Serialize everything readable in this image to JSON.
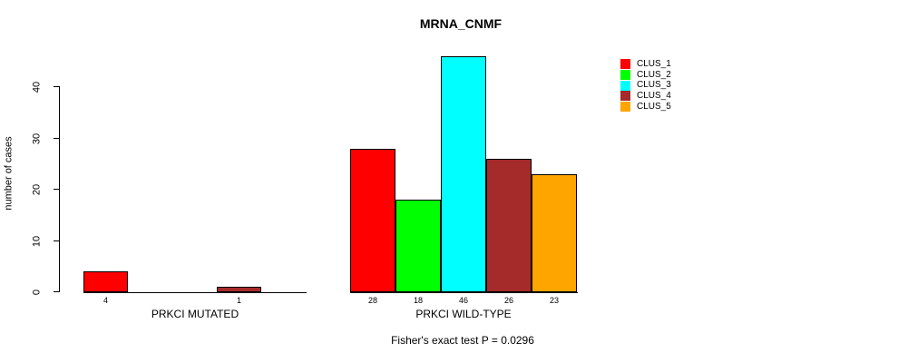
{
  "chart_data": {
    "type": "bar",
    "title": "MRNA_CNMF",
    "ylabel": "number of cases",
    "xlabel": "",
    "yticks": [
      0,
      10,
      20,
      30,
      40
    ],
    "ylim": [
      0,
      46
    ],
    "grid": false,
    "legend_position": "top-right",
    "axis_color": "#000000",
    "background_color": "#ffffff",
    "series": [
      {
        "name": "CLUS_1",
        "color": "#ff0000"
      },
      {
        "name": "CLUS_2",
        "color": "#00ff00"
      },
      {
        "name": "CLUS_3",
        "color": "#00ffff"
      },
      {
        "name": "CLUS_4",
        "color": "#a52a2a"
      },
      {
        "name": "CLUS_5",
        "color": "#ffa500"
      }
    ],
    "groups": [
      {
        "label": "PRKCI MUTATED",
        "values": [
          4,
          0,
          0,
          1,
          0
        ]
      },
      {
        "label": "PRKCI WILD-TYPE",
        "values": [
          28,
          18,
          46,
          26,
          23
        ]
      }
    ],
    "annotation": "Fisher's exact test P = 0.0296"
  }
}
